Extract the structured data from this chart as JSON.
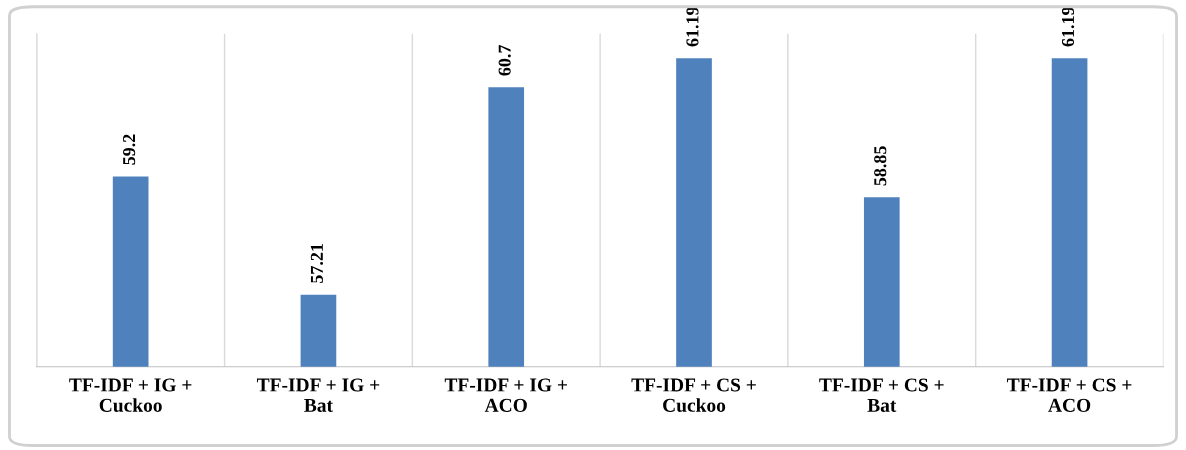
{
  "chart_data": {
    "type": "bar",
    "categories": [
      "TF-IDF + IG +\nCuckoo",
      "TF-IDF + IG +\nBat",
      "TF-IDF + IG +\nACO",
      "TF-IDF + CS +\nCuckoo",
      "TF-IDF + CS +\nBat",
      "TF-IDF + CS +\nACO"
    ],
    "values": [
      59.2,
      57.21,
      60.7,
      61.19,
      58.85,
      61.19
    ],
    "color": "#4f81bd",
    "ylim": [
      56,
      61.6
    ],
    "tick_labels": "x",
    "grid": "x",
    "data_labels": true
  }
}
